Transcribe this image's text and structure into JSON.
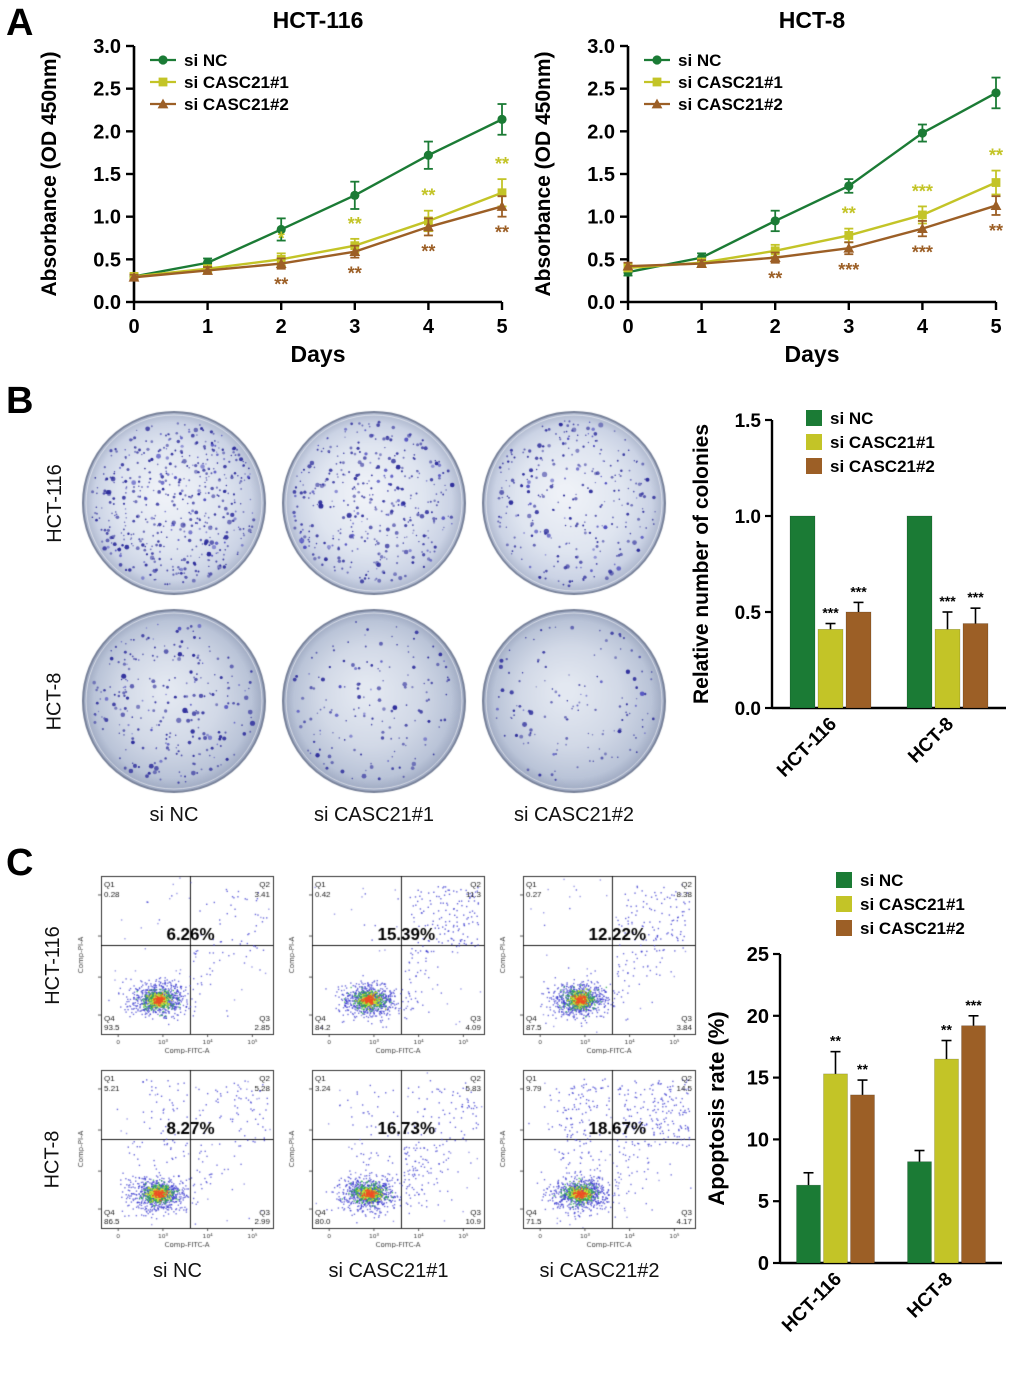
{
  "panels": {
    "a": "A",
    "b": "B",
    "c": "C"
  },
  "colors": {
    "si_nc": "#1b7b35",
    "si_casc21_1": "#c3c427",
    "si_casc21_2": "#9c5f26",
    "flow_dot": "#3a3ad0",
    "colony_dot": "#2e2e9c"
  },
  "chart_data": [
    {
      "id": "cck8_hct116",
      "type": "line",
      "title": "HCT-116",
      "xlabel": "Days",
      "ylabel": "Absorbance (OD 450nm)",
      "x": [
        0,
        1,
        2,
        3,
        4,
        5
      ],
      "xlim": [
        0,
        5
      ],
      "ylim": [
        0,
        3
      ],
      "yticks": [
        0,
        0.5,
        1,
        1.5,
        2,
        2.5,
        3
      ],
      "series": [
        {
          "name": "si NC",
          "marker": "circle",
          "values": [
            0.3,
            0.46,
            0.85,
            1.25,
            1.72,
            2.14
          ],
          "errors": [
            0.03,
            0.05,
            0.13,
            0.16,
            0.16,
            0.18
          ]
        },
        {
          "name": "si CASC21#1",
          "marker": "square",
          "values": [
            0.3,
            0.39,
            0.5,
            0.66,
            0.95,
            1.28
          ],
          "errors": [
            0.03,
            0.04,
            0.07,
            0.08,
            0.12,
            0.16
          ]
        },
        {
          "name": "si CASC21#2",
          "marker": "triangle",
          "values": [
            0.29,
            0.37,
            0.45,
            0.59,
            0.88,
            1.12
          ],
          "errors": [
            0.03,
            0.04,
            0.06,
            0.07,
            0.1,
            0.12
          ]
        }
      ],
      "annotations": [
        {
          "day": 2,
          "series": 1,
          "text": "*",
          "place": "above"
        },
        {
          "day": 3,
          "series": 1,
          "text": "**",
          "place": "above"
        },
        {
          "day": 4,
          "series": 1,
          "text": "**",
          "place": "above"
        },
        {
          "day": 5,
          "series": 1,
          "text": "**",
          "place": "above"
        },
        {
          "day": 2,
          "series": 2,
          "text": "**",
          "place": "below"
        },
        {
          "day": 3,
          "series": 2,
          "text": "**",
          "place": "below"
        },
        {
          "day": 4,
          "series": 2,
          "text": "**",
          "place": "below"
        },
        {
          "day": 5,
          "series": 2,
          "text": "**",
          "place": "below"
        }
      ]
    },
    {
      "id": "cck8_hct8",
      "type": "line",
      "title": "HCT-8",
      "xlabel": "Days",
      "ylabel": "Absorbance (OD 450nm)",
      "x": [
        0,
        1,
        2,
        3,
        4,
        5
      ],
      "xlim": [
        0,
        5
      ],
      "ylim": [
        0,
        3
      ],
      "yticks": [
        0,
        0.5,
        1,
        1.5,
        2,
        2.5,
        3
      ],
      "series": [
        {
          "name": "si NC",
          "marker": "circle",
          "values": [
            0.35,
            0.52,
            0.95,
            1.36,
            1.98,
            2.45
          ],
          "errors": [
            0.04,
            0.05,
            0.12,
            0.08,
            0.1,
            0.18
          ]
        },
        {
          "name": "si CASC21#1",
          "marker": "square",
          "values": [
            0.4,
            0.46,
            0.6,
            0.78,
            1.02,
            1.4
          ],
          "errors": [
            0.04,
            0.05,
            0.07,
            0.08,
            0.1,
            0.14
          ]
        },
        {
          "name": "si CASC21#2",
          "marker": "triangle",
          "values": [
            0.42,
            0.45,
            0.52,
            0.63,
            0.86,
            1.13
          ],
          "errors": [
            0.04,
            0.04,
            0.06,
            0.07,
            0.09,
            0.11
          ]
        }
      ],
      "annotations": [
        {
          "day": 3,
          "series": 1,
          "text": "**",
          "place": "above"
        },
        {
          "day": 4,
          "series": 1,
          "text": "***",
          "place": "above"
        },
        {
          "day": 5,
          "series": 1,
          "text": "**",
          "place": "above"
        },
        {
          "day": 2,
          "series": 2,
          "text": "**",
          "place": "below"
        },
        {
          "day": 3,
          "series": 2,
          "text": "***",
          "place": "below"
        },
        {
          "day": 4,
          "series": 2,
          "text": "***",
          "place": "below"
        },
        {
          "day": 5,
          "series": 2,
          "text": "**",
          "place": "below"
        }
      ]
    },
    {
      "id": "colonies",
      "type": "bar",
      "title": "",
      "xlabel": "",
      "ylabel": "Relative number of colonies",
      "categories": [
        "HCT-116",
        "HCT-8"
      ],
      "ylim": [
        0,
        1.5
      ],
      "yticks": [
        0,
        0.5,
        1,
        1.5
      ],
      "ydecimals": 1,
      "series": [
        {
          "name": "si NC",
          "values": [
            1.0,
            1.0
          ],
          "errors": [
            0,
            0
          ],
          "sig": [
            "",
            ""
          ]
        },
        {
          "name": "si CASC21#1",
          "values": [
            0.41,
            0.41
          ],
          "errors": [
            0.03,
            0.09
          ],
          "sig": [
            "***",
            "***"
          ]
        },
        {
          "name": "si CASC21#2",
          "values": [
            0.5,
            0.44
          ],
          "errors": [
            0.05,
            0.08
          ],
          "sig": [
            "***",
            "***"
          ]
        }
      ]
    },
    {
      "id": "apoptosis",
      "type": "bar",
      "title": "",
      "xlabel": "",
      "ylabel": "Apoptosis rate (%)",
      "categories": [
        "HCT-116",
        "HCT-8"
      ],
      "ylim": [
        0,
        25
      ],
      "yticks": [
        0,
        5,
        10,
        15,
        20,
        25
      ],
      "ydecimals": 0,
      "series": [
        {
          "name": "si NC",
          "values": [
            6.3,
            8.2
          ],
          "errors": [
            1.0,
            0.9
          ],
          "sig": [
            "",
            ""
          ]
        },
        {
          "name": "si CASC21#1",
          "values": [
            15.3,
            16.5
          ],
          "errors": [
            1.8,
            1.5
          ],
          "sig": [
            "**",
            "**"
          ]
        },
        {
          "name": "si CASC21#2",
          "values": [
            13.6,
            19.2
          ],
          "errors": [
            1.2,
            0.8
          ],
          "sig": [
            "**",
            "***"
          ]
        }
      ]
    }
  ],
  "panel_b": {
    "row_labels": [
      "HCT-116",
      "HCT-8"
    ],
    "col_labels": [
      "si NC",
      "si CASC21#1",
      "si CASC21#2"
    ],
    "dishes": [
      [
        {
          "density": 520
        },
        {
          "density": 380
        },
        {
          "density": 290
        }
      ],
      [
        {
          "density": 260
        },
        {
          "density": 150
        },
        {
          "density": 130
        }
      ]
    ]
  },
  "panel_c": {
    "row_labels": [
      "HCT-116",
      "HCT-8"
    ],
    "col_labels": [
      "si NC",
      "si CASC21#1",
      "si CASC21#2"
    ],
    "flow_xlabel": "Comp-FITC-A",
    "flow_ylabel": "Comp-PI-A",
    "plots": [
      [
        {
          "q1": "0.28",
          "q2": "3.41",
          "q3": "2.85",
          "q4": "93.5",
          "percent": "6.26%"
        },
        {
          "q1": "0.42",
          "q2": "11.3",
          "q3": "4.09",
          "q4": "84.2",
          "percent": "15.39%"
        },
        {
          "q1": "0.27",
          "q2": "8.38",
          "q3": "3.84",
          "q4": "87.5",
          "percent": "12.22%"
        }
      ],
      [
        {
          "q1": "5.21",
          "q2": "5.28",
          "q3": "2.99",
          "q4": "86.5",
          "percent": "8.27%"
        },
        {
          "q1": "3.24",
          "q2": "5.83",
          "q3": "10.9",
          "q4": "80.0",
          "percent": "16.73%"
        },
        {
          "q1": "9.79",
          "q2": "14.5",
          "q3": "4.17",
          "q4": "71.5",
          "percent": "18.67%"
        }
      ]
    ]
  }
}
